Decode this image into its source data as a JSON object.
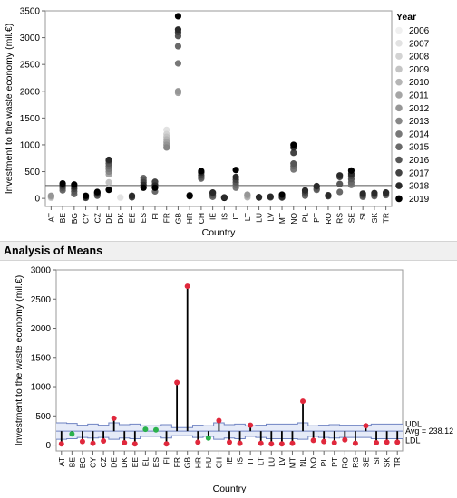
{
  "chart_data": [
    {
      "type": "scatter",
      "xlabel": "Country",
      "ylabel": "Investment to the waste economy (mil.€)",
      "ylim": [
        -150,
        3500
      ],
      "yticks": [
        0,
        500,
        1000,
        1500,
        2000,
        2500,
        3000,
        3500
      ],
      "reference_line": 240,
      "categories": [
        "AT",
        "BE",
        "BG",
        "CY",
        "CZ",
        "DE",
        "DK",
        "EE",
        "ES",
        "FI",
        "FR",
        "GB",
        "HR",
        "CH",
        "IE",
        "IS",
        "IT",
        "LT",
        "LU",
        "LV",
        "MT",
        "NO",
        "PL",
        "PT",
        "RO",
        "RS",
        "SE",
        "SI",
        "SK",
        "TR"
      ],
      "legend": {
        "title": "Year",
        "placement": "right",
        "items": [
          "2006",
          "2007",
          "2008",
          "2009",
          "2010",
          "2011",
          "2012",
          "2013",
          "2014",
          "2015",
          "2016",
          "2017",
          "2018",
          "2019"
        ],
        "colors": [
          "#f0f0f0",
          "#e2e2e2",
          "#d3d3d3",
          "#c4c4c4",
          "#b5b5b5",
          "#a5a5a5",
          "#969696",
          "#878787",
          "#787878",
          "#696969",
          "#575757",
          "#434343",
          "#2a2a2a",
          "#000000"
        ]
      },
      "points": {
        "AT": [
          [
            2,
            10
          ],
          [
            3,
            20
          ],
          [
            4,
            30
          ],
          [
            5,
            40
          ],
          [
            6,
            50
          ]
        ],
        "BE": [
          [
            9,
            150
          ],
          [
            10,
            190
          ],
          [
            11,
            220
          ],
          [
            12,
            250
          ],
          [
            13,
            280
          ]
        ],
        "BG": [
          [
            9,
            80
          ],
          [
            10,
            130
          ],
          [
            11,
            180
          ],
          [
            12,
            220
          ],
          [
            13,
            260
          ]
        ],
        "CY": [
          [
            11,
            10
          ],
          [
            12,
            30
          ],
          [
            13,
            50
          ]
        ],
        "CZ": [
          [
            10,
            50
          ],
          [
            11,
            80
          ],
          [
            12,
            100
          ],
          [
            13,
            120
          ]
        ],
        "DE": [
          [
            3,
            300
          ],
          [
            5,
            450
          ],
          [
            7,
            500
          ],
          [
            8,
            550
          ],
          [
            9,
            600
          ],
          [
            10,
            650
          ],
          [
            11,
            700
          ],
          [
            12,
            720
          ],
          [
            13,
            160
          ]
        ],
        "DK": [
          [
            0,
            10
          ],
          [
            1,
            20
          ]
        ],
        "EE": [
          [
            10,
            30
          ],
          [
            11,
            20
          ],
          [
            12,
            50
          ]
        ],
        "ES": [
          [
            9,
            380
          ],
          [
            10,
            340
          ],
          [
            11,
            300
          ],
          [
            12,
            250
          ],
          [
            13,
            200
          ]
        ],
        "FI": [
          [
            9,
            130
          ],
          [
            10,
            260
          ],
          [
            11,
            310
          ],
          [
            12,
            240
          ],
          [
            13,
            200
          ]
        ],
        "FR": [
          [
            1,
            1280
          ],
          [
            2,
            1200
          ],
          [
            3,
            1150
          ],
          [
            4,
            1100
          ],
          [
            5,
            1050
          ],
          [
            6,
            1000
          ],
          [
            7,
            950
          ]
        ],
        "GB": [
          [
            5,
            1970
          ],
          [
            6,
            2000
          ],
          [
            8,
            2520
          ],
          [
            9,
            2840
          ],
          [
            10,
            3030
          ],
          [
            11,
            3100
          ],
          [
            12,
            3150
          ],
          [
            13,
            3400
          ]
        ],
        "HR": [
          [
            11,
            60
          ],
          [
            12,
            40
          ],
          [
            13,
            50
          ]
        ],
        "CH": [
          [
            9,
            370
          ],
          [
            10,
            400
          ],
          [
            11,
            430
          ],
          [
            12,
            480
          ],
          [
            13,
            510
          ]
        ],
        "IE": [
          [
            9,
            30
          ],
          [
            10,
            60
          ],
          [
            11,
            90
          ],
          [
            12,
            110
          ]
        ],
        "IS": [
          [
            13,
            10
          ],
          [
            12,
            20
          ]
        ],
        "IT": [
          [
            8,
            200
          ],
          [
            9,
            250
          ],
          [
            10,
            300
          ],
          [
            11,
            350
          ],
          [
            12,
            400
          ],
          [
            13,
            530
          ]
        ],
        "LT": [
          [
            4,
            20
          ],
          [
            5,
            50
          ],
          [
            6,
            70
          ]
        ],
        "LU": [
          [
            11,
            15
          ],
          [
            12,
            25
          ]
        ],
        "LV": [
          [
            11,
            20
          ],
          [
            12,
            35
          ]
        ],
        "MT": [
          [
            11,
            15
          ],
          [
            12,
            30
          ],
          [
            13,
            70
          ]
        ],
        "NO": [
          [
            8,
            540
          ],
          [
            9,
            600
          ],
          [
            10,
            650
          ],
          [
            11,
            850
          ],
          [
            12,
            950
          ],
          [
            13,
            1000
          ]
        ],
        "PL": [
          [
            9,
            50
          ],
          [
            10,
            90
          ],
          [
            11,
            120
          ],
          [
            12,
            150
          ]
        ],
        "PT": [
          [
            9,
            160
          ],
          [
            10,
            180
          ],
          [
            11,
            220
          ],
          [
            12,
            230
          ]
        ],
        "RO": [
          [
            11,
            40
          ],
          [
            12,
            60
          ]
        ],
        "RS": [
          [
            9,
            120
          ],
          [
            10,
            270
          ],
          [
            11,
            400
          ],
          [
            12,
            430
          ]
        ],
        "SE": [
          [
            8,
            250
          ],
          [
            9,
            300
          ],
          [
            10,
            360
          ],
          [
            11,
            420
          ],
          [
            12,
            460
          ],
          [
            13,
            520
          ]
        ],
        "SI": [
          [
            9,
            30
          ],
          [
            10,
            50
          ],
          [
            11,
            70
          ],
          [
            12,
            90
          ]
        ],
        "SK": [
          [
            9,
            40
          ],
          [
            10,
            60
          ],
          [
            11,
            80
          ],
          [
            12,
            100
          ]
        ],
        "TR": [
          [
            9,
            60
          ],
          [
            10,
            80
          ],
          [
            11,
            100
          ],
          [
            12,
            110
          ]
        ]
      }
    },
    {
      "type": "scatter",
      "title": "Analysis of Means",
      "xlabel": "Country",
      "ylabel": "Investment to the waste economy (mil.€)",
      "ylim": [
        -100,
        3000
      ],
      "yticks": [
        0,
        500,
        1000,
        1500,
        2000,
        2500,
        3000
      ],
      "avg": 238.12,
      "avg_label": "Avg = 238.12",
      "udl_label": "UDL",
      "ldl_label": "LDL",
      "categories": [
        "AT",
        "BE",
        "BG",
        "CY",
        "CZ",
        "DE",
        "DK",
        "EE",
        "EL",
        "ES",
        "FI",
        "FR",
        "GB",
        "HR",
        "HU",
        "CH",
        "IE",
        "IS",
        "IT",
        "LT",
        "LU",
        "LV",
        "MT",
        "NL",
        "NO",
        "PL",
        "PT",
        "RO",
        "RS",
        "SE",
        "SI",
        "SK",
        "TR"
      ],
      "means": [
        20,
        190,
        60,
        30,
        70,
        460,
        40,
        20,
        270,
        260,
        20,
        1070,
        2720,
        50,
        120,
        420,
        50,
        30,
        340,
        30,
        20,
        20,
        30,
        750,
        80,
        60,
        40,
        90,
        30,
        330,
        40,
        50,
        50
      ],
      "status": [
        "out",
        "in",
        "out",
        "out",
        "out",
        "out",
        "out",
        "out",
        "in",
        "in",
        "out",
        "out",
        "out",
        "out",
        "in",
        "out",
        "out",
        "out",
        "out",
        "out",
        "out",
        "out",
        "out",
        "out",
        "out",
        "out",
        "out",
        "out",
        "out",
        "out",
        "out",
        "out",
        "out"
      ],
      "udl": [
        380,
        370,
        340,
        360,
        340,
        380,
        350,
        360,
        330,
        330,
        350,
        300,
        300,
        340,
        330,
        380,
        350,
        360,
        330,
        340,
        360,
        360,
        360,
        380,
        330,
        340,
        350,
        340,
        340,
        340,
        360,
        360,
        360
      ],
      "ldl": [
        100,
        110,
        130,
        120,
        130,
        100,
        120,
        110,
        150,
        150,
        120,
        160,
        160,
        130,
        150,
        100,
        120,
        110,
        150,
        130,
        110,
        110,
        110,
        100,
        150,
        130,
        120,
        130,
        130,
        130,
        110,
        110,
        110
      ],
      "colors": {
        "out": "#e0283c",
        "in": "#2bb24c",
        "band": "#e6ebf8",
        "band_line": "#6f83c2"
      }
    }
  ]
}
